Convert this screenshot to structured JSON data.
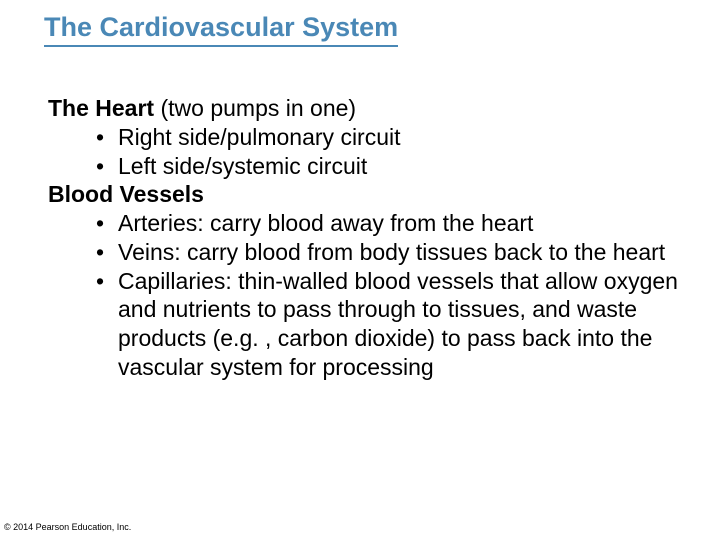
{
  "slide": {
    "title": "The Cardiovascular System",
    "title_color": "#4a88b6",
    "title_fontsize": 27,
    "body_fontsize": 23,
    "body_color": "#000000",
    "background_color": "#ffffff",
    "sections": [
      {
        "heading_bold": "The Heart",
        "heading_rest": " (two pumps in one)",
        "bullets": [
          "Right side/pulmonary circuit",
          "Left side/systemic circuit"
        ]
      },
      {
        "heading_bold": "Blood Vessels",
        "heading_rest": "",
        "bullets": [
          "Arteries: carry blood away from the heart",
          "Veins: carry blood from body tissues back to the heart",
          "Capillaries: thin-walled blood vessels that allow oxygen and nutrients to pass through to tissues, and waste products (e.g. , carbon dioxide) to pass back into the vascular system for processing"
        ]
      }
    ],
    "copyright": "© 2014 Pearson Education, Inc."
  }
}
